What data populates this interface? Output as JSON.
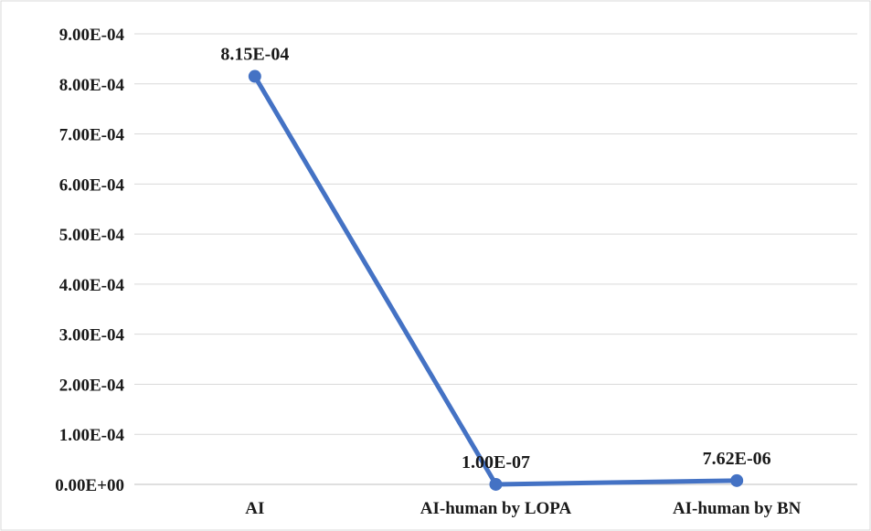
{
  "chart_data": {
    "type": "line",
    "title": "",
    "xlabel": "",
    "ylabel": "",
    "categories": [
      "AI",
      "AI-human by LOPA",
      "AI-human by BN"
    ],
    "series": [
      {
        "values": [
          0.000815,
          1e-07,
          7.62e-06
        ],
        "labels": [
          "8.15E-04",
          "1.00E-07",
          "7.62E-06"
        ],
        "color": "#4472C4"
      }
    ],
    "ylim": [
      0,
      0.0009
    ],
    "yticks": [
      0,
      0.0001,
      0.0002,
      0.0003,
      0.0004,
      0.0005,
      0.0006,
      0.0007,
      0.0008,
      0.0009
    ],
    "ytick_labels": [
      "0.00E+00",
      "1.00E-04",
      "2.00E-04",
      "3.00E-04",
      "4.00E-04",
      "5.00E-04",
      "6.00E-04",
      "7.00E-04",
      "8.00E-04",
      "9.00E-04"
    ],
    "grid": true,
    "legend": "none",
    "gridline_color": "#d9d9d9",
    "axis_color": "#bfbfbf"
  }
}
